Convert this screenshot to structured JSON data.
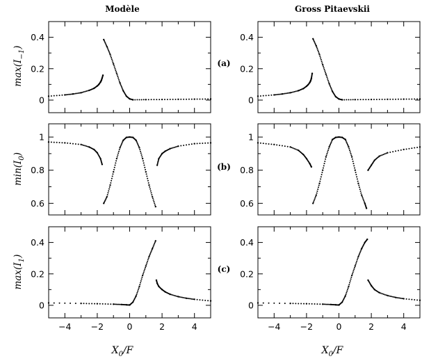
{
  "columns": [
    "Modèle",
    "Gross Pitaevskii"
  ],
  "panel_labels": [
    "(a)",
    "(b)",
    "(c)"
  ],
  "row_ylabels": [
    {
      "fn": "max",
      "var": "I",
      "sub": "−1"
    },
    {
      "fn": "min",
      "var": "I",
      "sub": "0"
    },
    {
      "fn": "max",
      "var": "I",
      "sub": "1"
    }
  ],
  "xlabel": {
    "var": "X",
    "sub": "0",
    "rest": "/F"
  },
  "chart_data": {
    "type": "scatter",
    "layout": "grid 3 rows × 2 columns",
    "xlim": [
      -5,
      5
    ],
    "xticks": [
      -4,
      -2,
      0,
      2,
      4
    ],
    "xtick_labels": [
      "−4",
      "−2",
      "0",
      "2",
      "4"
    ],
    "rows": [
      {
        "ylim": [
          -0.08,
          0.5
        ],
        "yticks": [
          0,
          0.2,
          0.4
        ],
        "ytick_labels": [
          "0",
          "0.2",
          "0.4"
        ],
        "panels": [
          {
            "column": "Modèle",
            "series": [
              {
                "x": [
                  -5,
                  -4,
                  -3.5,
                  -3,
                  -2.5,
                  -2.2,
                  -2,
                  -1.9,
                  -1.8,
                  -1.75,
                  -1.7,
                  -1.65
                ],
                "y": [
                  0.025,
                  0.033,
                  0.039,
                  0.047,
                  0.062,
                  0.075,
                  0.09,
                  0.1,
                  0.115,
                  0.125,
                  0.14,
                  0.158
                ]
              },
              {
                "x": [
                  -1.6,
                  -1.4,
                  -1.2,
                  -1.0,
                  -0.8,
                  -0.6,
                  -0.4,
                  -0.2,
                  0,
                  0.2
                ],
                "y": [
                  0.385,
                  0.34,
                  0.29,
                  0.23,
                  0.17,
                  0.11,
                  0.06,
                  0.025,
                  0.008,
                  0.002
                ]
              },
              {
                "x": [
                  0.2,
                  1,
                  2,
                  3,
                  4,
                  5
                ],
                "y": [
                  0.002,
                  0.003,
                  0.004,
                  0.005,
                  0.006,
                  0.007
                ]
              }
            ]
          },
          {
            "column": "Gross Pitaevskii",
            "series": [
              {
                "x": [
                  -5,
                  -4,
                  -3.5,
                  -3,
                  -2.5,
                  -2.2,
                  -2,
                  -1.9,
                  -1.8,
                  -1.75,
                  -1.7,
                  -1.65
                ],
                "y": [
                  0.025,
                  0.033,
                  0.039,
                  0.047,
                  0.06,
                  0.073,
                  0.088,
                  0.098,
                  0.112,
                  0.122,
                  0.138,
                  0.17
                ]
              },
              {
                "x": [
                  -1.6,
                  -1.4,
                  -1.2,
                  -1.0,
                  -0.8,
                  -0.6,
                  -0.4,
                  -0.2,
                  0,
                  0.2
                ],
                "y": [
                  0.39,
                  0.345,
                  0.29,
                  0.225,
                  0.165,
                  0.105,
                  0.055,
                  0.022,
                  0.007,
                  0.002
                ]
              },
              {
                "x": [
                  0.2,
                  1,
                  2,
                  3,
                  4,
                  5
                ],
                "y": [
                  0.002,
                  0.003,
                  0.004,
                  0.005,
                  0.006,
                  0.007
                ]
              }
            ]
          }
        ]
      },
      {
        "ylim": [
          0.53,
          1.08
        ],
        "yticks": [
          0.6,
          0.8,
          1.0
        ],
        "ytick_labels": [
          "0.6",
          "0.8",
          "1"
        ],
        "panels": [
          {
            "column": "Modèle",
            "series": [
              {
                "x": [
                  -5,
                  -4,
                  -3,
                  -2.5,
                  -2.2,
                  -2,
                  -1.8,
                  -1.7
                ],
                "y": [
                  0.97,
                  0.965,
                  0.955,
                  0.94,
                  0.925,
                  0.905,
                  0.87,
                  0.835
                ]
              },
              {
                "x": [
                  -1.6,
                  -1.4,
                  -1.2,
                  -1.0,
                  -0.8,
                  -0.6,
                  -0.4,
                  -0.2,
                  0,
                  0.2,
                  0.4,
                  0.6,
                  0.8,
                  1.0,
                  1.2,
                  1.4,
                  1.6
                ],
                "y": [
                  0.6,
                  0.64,
                  0.71,
                  0.79,
                  0.87,
                  0.935,
                  0.98,
                  0.998,
                  1.0,
                  0.998,
                  0.98,
                  0.935,
                  0.87,
                  0.79,
                  0.71,
                  0.64,
                  0.58
                ]
              },
              {
                "x": [
                  1.7,
                  1.8,
                  2,
                  2.2,
                  2.5,
                  3,
                  4,
                  5
                ],
                "y": [
                  0.83,
                  0.87,
                  0.9,
                  0.915,
                  0.93,
                  0.945,
                  0.96,
                  0.965
                ]
              }
            ]
          },
          {
            "column": "Gross Pitaevskii",
            "series": [
              {
                "x": [
                  -5,
                  -4,
                  -3,
                  -2.5,
                  -2.2,
                  -2,
                  -1.8,
                  -1.7
                ],
                "y": [
                  0.965,
                  0.955,
                  0.94,
                  0.92,
                  0.895,
                  0.87,
                  0.84,
                  0.82
                ]
              },
              {
                "x": [
                  -1.6,
                  -1.4,
                  -1.2,
                  -1.0,
                  -0.8,
                  -0.6,
                  -0.4,
                  -0.2,
                  0,
                  0.2,
                  0.4,
                  0.6,
                  0.8,
                  1.0,
                  1.2,
                  1.4,
                  1.6,
                  1.7
                ],
                "y": [
                  0.6,
                  0.65,
                  0.72,
                  0.8,
                  0.88,
                  0.94,
                  0.985,
                  0.998,
                  1.0,
                  0.998,
                  0.985,
                  0.94,
                  0.88,
                  0.8,
                  0.72,
                  0.65,
                  0.6,
                  0.57
                ]
              },
              {
                "x": [
                  1.8,
                  2,
                  2.2,
                  2.5,
                  3,
                  4,
                  5
                ],
                "y": [
                  0.8,
                  0.83,
                  0.86,
                  0.885,
                  0.905,
                  0.925,
                  0.94
                ]
              }
            ]
          }
        ]
      },
      {
        "ylim": [
          -0.08,
          0.5
        ],
        "yticks": [
          0,
          0.2,
          0.4
        ],
        "ytick_labels": [
          "0",
          "0.2",
          "0.4"
        ],
        "panels": [
          {
            "column": "Modèle",
            "series": [
              {
                "x": [
                  -5,
                  -3,
                  -2,
                  -1,
                  -0.5,
                  -0.2,
                  0
                ],
                "y": [
                  0.015,
                  0.012,
                  0.01,
                  0.007,
                  0.005,
                  0.003,
                  0.002
                ]
              },
              {
                "x": [
                  0,
                  0.2,
                  0.4,
                  0.6,
                  0.8,
                  1.0,
                  1.2,
                  1.4,
                  1.6
                ],
                "y": [
                  0.002,
                  0.02,
                  0.06,
                  0.12,
                  0.19,
                  0.25,
                  0.31,
                  0.36,
                  0.41
                ]
              },
              {
                "x": [
                  1.65,
                  1.7,
                  1.8,
                  2,
                  2.2,
                  2.5,
                  3,
                  3.5,
                  4,
                  5
                ],
                "y": [
                  0.16,
                  0.14,
                  0.12,
                  0.1,
                  0.085,
                  0.07,
                  0.055,
                  0.045,
                  0.038,
                  0.028
                ]
              }
            ]
          },
          {
            "column": "Gross Pitaevskii",
            "series": [
              {
                "x": [
                  -5,
                  -3,
                  -2,
                  -1,
                  -0.5,
                  -0.2,
                  0
                ],
                "y": [
                  0.015,
                  0.012,
                  0.01,
                  0.007,
                  0.005,
                  0.003,
                  0.002
                ]
              },
              {
                "x": [
                  0,
                  0.2,
                  0.4,
                  0.6,
                  0.8,
                  1.0,
                  1.2,
                  1.4,
                  1.6,
                  1.75
                ],
                "y": [
                  0.002,
                  0.02,
                  0.06,
                  0.12,
                  0.19,
                  0.25,
                  0.31,
                  0.36,
                  0.4,
                  0.42
                ]
              },
              {
                "x": [
                  1.8,
                  2,
                  2.2,
                  2.5,
                  3,
                  3.5,
                  4,
                  5
                ],
                "y": [
                  0.16,
                  0.125,
                  0.1,
                  0.08,
                  0.062,
                  0.05,
                  0.042,
                  0.032
                ]
              }
            ]
          }
        ]
      }
    ]
  }
}
